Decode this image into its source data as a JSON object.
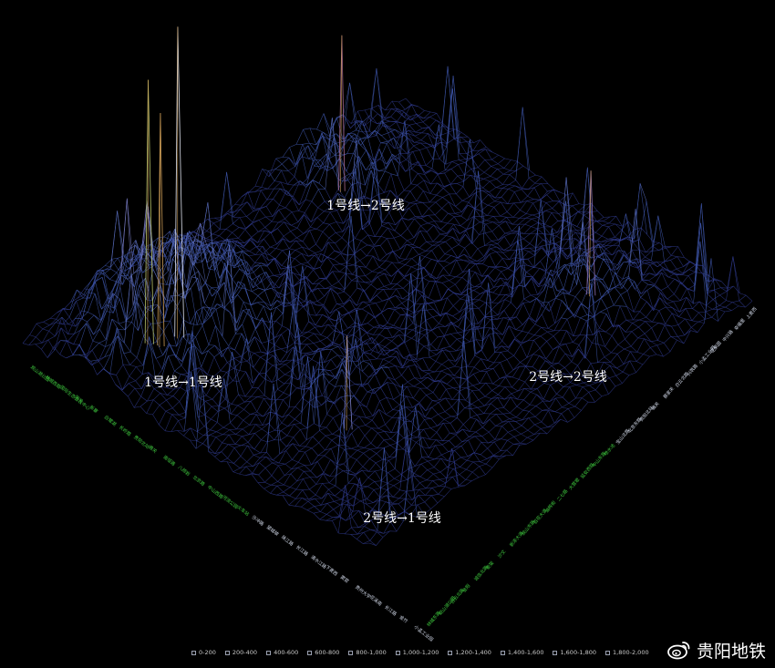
{
  "chart_data": {
    "type": "surface",
    "title": "",
    "quadrant_labels": [
      "1号线→2号线",
      "1号线→1号线",
      "2号线→2号线",
      "2号线→1号线"
    ],
    "legend": [
      "0-200",
      "200-400",
      "400-600",
      "600-800",
      "800-1,000",
      "1,000-1,200",
      "1,200-1,400",
      "1,400-1,600",
      "1,600-1,800",
      "1,800-2,000"
    ],
    "legend_colors": [
      "#2f3a8c",
      "#3d55a8",
      "#5a6fbf",
      "#7b7fc9",
      "#8e6fb0",
      "#a56a8e",
      "#b97a66",
      "#c99a55",
      "#b9c46a",
      "#dfe3ef"
    ],
    "zlim": [
      0,
      2000
    ],
    "peaks": [
      {
        "region": "1号线→1号线",
        "value": 2000
      },
      {
        "region": "1号线→1号线",
        "value": 1700
      },
      {
        "region": "1号线→1号线",
        "value": 1500
      },
      {
        "region": "1号线→2号线",
        "value": 1000
      },
      {
        "region": "2号线→2号线",
        "value": 800
      },
      {
        "region": "2号线→1号线",
        "value": 600
      }
    ]
  },
  "stations_left": [
    "观山湖公园",
    "林城西路",
    "国际生态会议中心",
    "阳关",
    "新寨",
    "白鹭湖",
    "长岭路",
    "贵阳北站",
    "雅关",
    "南垭路",
    "八鸽岩",
    "北京路",
    "中山西路",
    "河滨公园",
    "火车站",
    "沙冲路",
    "望城坡",
    "珠江路",
    "长江路",
    "清水江路",
    "下麦西",
    "窦官",
    "贵州大学",
    "花溪南",
    "长江路",
    "金竹",
    "小孟工业园"
  ],
  "stations_right": [
    "林城东路",
    "观山湖公园",
    "白云北路",
    "金阳",
    "诚信北路",
    "麦架",
    "沙文",
    "新添大道",
    "观山东路",
    "百花大道",
    "油榨街",
    "二七路",
    "大营坡",
    "延安西路",
    "中山东路",
    "喷水池",
    "宝山北路",
    "北京东路",
    "贵阳北站",
    "雅关",
    "蔡家关",
    "白云北路",
    "兴筑路",
    "小孟工业园",
    "花果园",
    "中兴路",
    "幸福里",
    "上麦西"
  ],
  "watermark": {
    "text": "贵阳地铁",
    "icon": "weibo-icon"
  }
}
